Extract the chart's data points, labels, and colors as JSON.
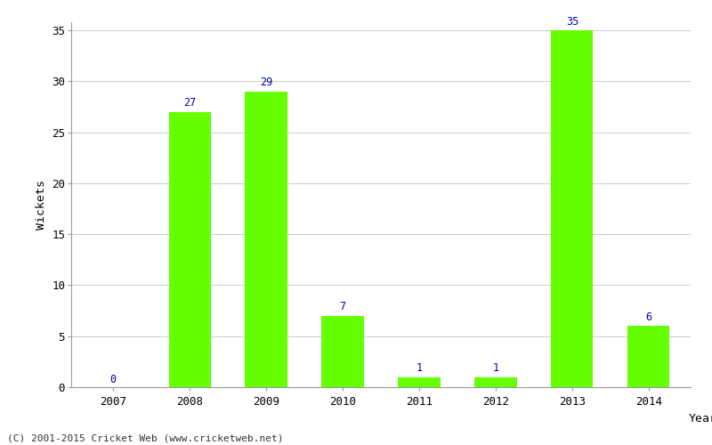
{
  "years": [
    "2007",
    "2008",
    "2009",
    "2010",
    "2011",
    "2012",
    "2013",
    "2014"
  ],
  "wickets": [
    0,
    27,
    29,
    7,
    1,
    1,
    35,
    6
  ],
  "bar_color": "#66ff00",
  "label_color": "#0000aa",
  "xlabel": "Year",
  "ylabel": "Wickets",
  "ylim_max": 35,
  "yticks": [
    0,
    5,
    10,
    15,
    20,
    25,
    30,
    35
  ],
  "footnote": "(C) 2001-2015 Cricket Web (www.cricketweb.net)",
  "background_color": "#ffffff",
  "grid_color": "#cccccc",
  "label_fontsize": 8.5,
  "axis_tick_fontsize": 9,
  "axis_label_fontsize": 9.5,
  "footnote_fontsize": 8,
  "bar_width": 0.55
}
